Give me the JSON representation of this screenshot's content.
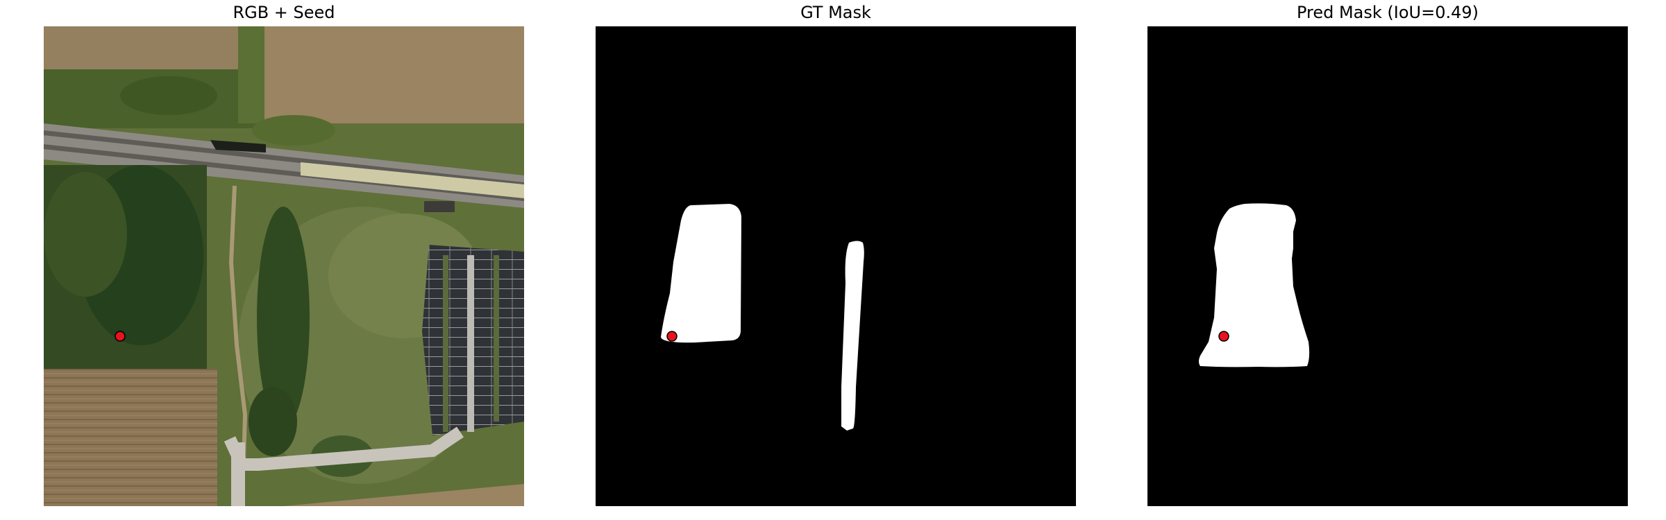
{
  "figure": {
    "panels": [
      {
        "title": "RGB + Seed"
      },
      {
        "title": "GT Mask"
      },
      {
        "title": "Pred Mask (IoU=0.49)"
      }
    ],
    "seed_marker": {
      "fill": "#e8141e",
      "stroke": "#000000"
    },
    "mask_colors": {
      "background": "#000000",
      "foreground": "#ffffff"
    }
  }
}
